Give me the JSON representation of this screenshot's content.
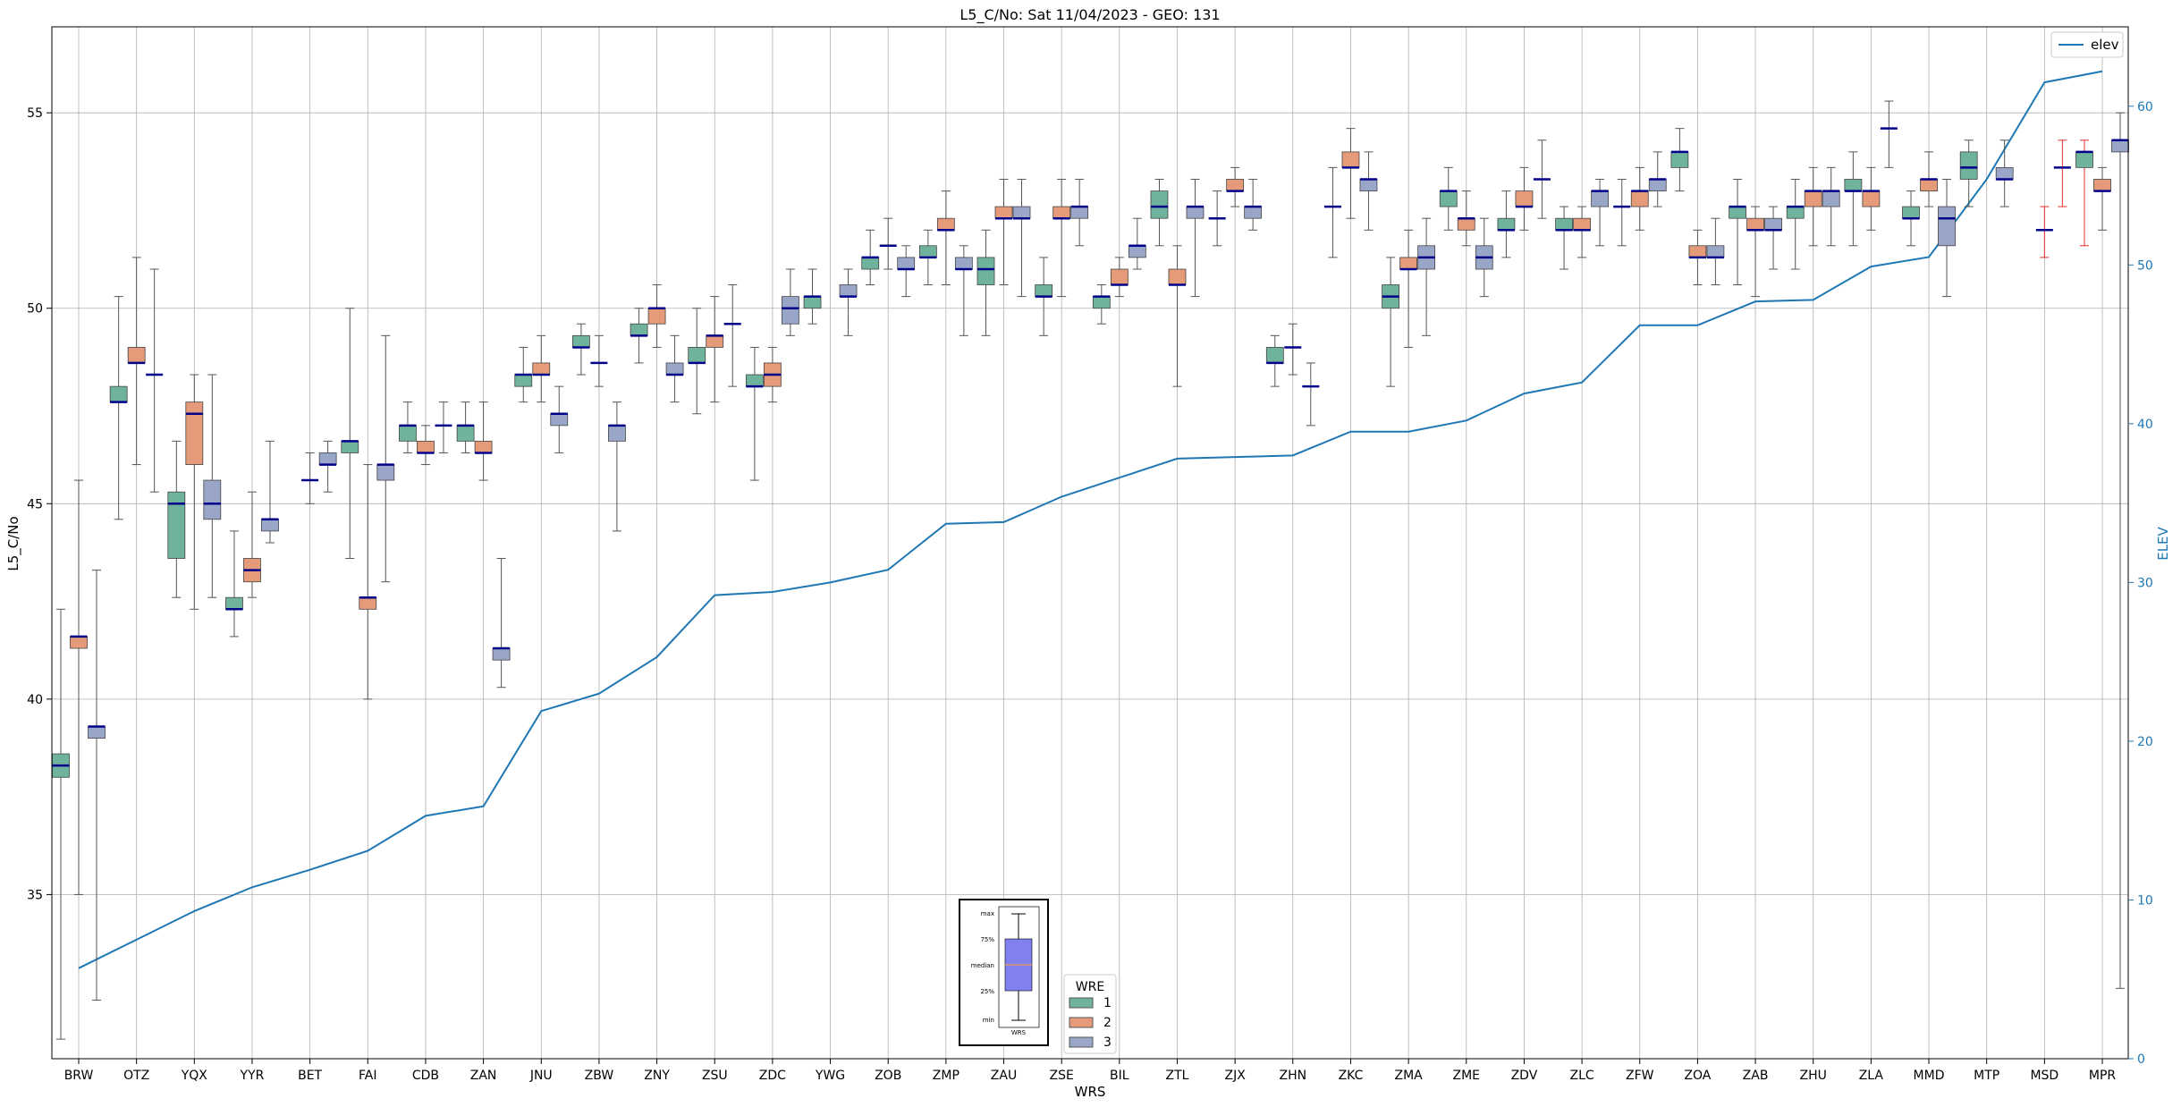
{
  "chart_data": {
    "type": "box",
    "title": "L5_C/No: Sat 11/04/2023 - GEO: 131",
    "xlabel": "WRS",
    "ylabel": "L5_C/No",
    "y2label": "ELEV",
    "ylim": [
      30.8,
      57.2
    ],
    "y2lim": [
      0,
      65
    ],
    "yticks": [
      35,
      40,
      45,
      50,
      55
    ],
    "y2ticks": [
      0,
      10,
      20,
      30,
      40,
      50,
      60
    ],
    "grid": true,
    "legend_placement": "top-right",
    "legend_line": "elev",
    "box_legend": {
      "title": "WRE",
      "entries": [
        "1",
        "2",
        "3"
      ]
    },
    "inset_labels": [
      "max",
      "75%",
      "median",
      "25%",
      "min",
      "WRS"
    ],
    "colors": {
      "1": "#6fb39c",
      "2": "#e59a79",
      "3": "#9aa6c8",
      "elev": "#1f77b4",
      "median": "#00008b",
      "whisker": "#555555",
      "outlier_whisker": "#e03030"
    },
    "categories": [
      "BRW",
      "OTZ",
      "YQX",
      "YYR",
      "BET",
      "FAI",
      "CDB",
      "ZAN",
      "JNU",
      "ZBW",
      "ZNY",
      "ZSU",
      "ZDC",
      "YWG",
      "ZOB",
      "ZMP",
      "ZAU",
      "ZSE",
      "BIL",
      "ZTL",
      "ZJX",
      "ZHN",
      "ZKC",
      "ZMA",
      "ZME",
      "ZDV",
      "ZLC",
      "ZFW",
      "ZOA",
      "ZAB",
      "ZHU",
      "ZLA",
      "MMD",
      "MTP",
      "MSD",
      "MPR"
    ],
    "elev_series": [
      5.7,
      7.5,
      9.3,
      10.8,
      11.9,
      13.1,
      15.3,
      15.9,
      21.9,
      23.0,
      25.3,
      29.2,
      29.4,
      30.0,
      30.8,
      33.7,
      33.8,
      35.4,
      36.6,
      37.8,
      37.9,
      38.0,
      39.5,
      39.5,
      40.2,
      41.9,
      42.6,
      46.2,
      46.2,
      47.7,
      47.8,
      49.9,
      50.5,
      55.4,
      61.5,
      62.2
    ],
    "boxes": [
      {
        "cat": "BRW",
        "wre": "1",
        "min": 31.3,
        "q1": 38.0,
        "med": 38.3,
        "q3": 38.6,
        "max": 42.3
      },
      {
        "cat": "BRW",
        "wre": "2",
        "min": 35.0,
        "q1": 41.3,
        "med": 41.6,
        "q3": 41.6,
        "max": 45.6
      },
      {
        "cat": "BRW",
        "wre": "3",
        "min": 32.3,
        "q1": 39.0,
        "med": 39.3,
        "q3": 39.3,
        "max": 43.3
      },
      {
        "cat": "OTZ",
        "wre": "1",
        "min": 44.6,
        "q1": 47.6,
        "med": 47.6,
        "q3": 48.0,
        "max": 50.3
      },
      {
        "cat": "OTZ",
        "wre": "2",
        "min": 46.0,
        "q1": 48.6,
        "med": 48.6,
        "q3": 49.0,
        "max": 51.3
      },
      {
        "cat": "OTZ",
        "wre": "3",
        "min": 45.3,
        "q1": 48.3,
        "med": 48.3,
        "q3": 48.3,
        "max": 51.0
      },
      {
        "cat": "YQX",
        "wre": "1",
        "min": 42.6,
        "q1": 43.6,
        "med": 45.0,
        "q3": 45.3,
        "max": 46.6
      },
      {
        "cat": "YQX",
        "wre": "2",
        "min": 42.3,
        "q1": 46.0,
        "med": 47.3,
        "q3": 47.6,
        "max": 48.3
      },
      {
        "cat": "YQX",
        "wre": "3",
        "min": 42.6,
        "q1": 44.6,
        "med": 45.0,
        "q3": 45.6,
        "max": 48.3
      },
      {
        "cat": "YYR",
        "wre": "1",
        "min": 41.6,
        "q1": 42.3,
        "med": 42.3,
        "q3": 42.6,
        "max": 44.3
      },
      {
        "cat": "YYR",
        "wre": "2",
        "min": 42.6,
        "q1": 43.0,
        "med": 43.3,
        "q3": 43.6,
        "max": 45.3
      },
      {
        "cat": "YYR",
        "wre": "3",
        "min": 44.0,
        "q1": 44.3,
        "med": 44.6,
        "q3": 44.6,
        "max": 46.6
      },
      {
        "cat": "BET",
        "wre": "2",
        "min": 45.0,
        "q1": 45.6,
        "med": 45.6,
        "q3": 45.6,
        "max": 46.3
      },
      {
        "cat": "BET",
        "wre": "3",
        "min": 45.3,
        "q1": 46.0,
        "med": 46.0,
        "q3": 46.3,
        "max": 46.6
      },
      {
        "cat": "FAI",
        "wre": "1",
        "min": 43.6,
        "q1": 46.3,
        "med": 46.6,
        "q3": 46.6,
        "max": 50.0
      },
      {
        "cat": "FAI",
        "wre": "2",
        "min": 40.0,
        "q1": 42.3,
        "med": 42.6,
        "q3": 42.6,
        "max": 46.0
      },
      {
        "cat": "FAI",
        "wre": "3",
        "min": 43.0,
        "q1": 45.6,
        "med": 46.0,
        "q3": 46.0,
        "max": 49.3
      },
      {
        "cat": "CDB",
        "wre": "1",
        "min": 46.3,
        "q1": 46.6,
        "med": 47.0,
        "q3": 47.0,
        "max": 47.6
      },
      {
        "cat": "CDB",
        "wre": "2",
        "min": 46.0,
        "q1": 46.3,
        "med": 46.3,
        "q3": 46.6,
        "max": 47.0
      },
      {
        "cat": "CDB",
        "wre": "3",
        "min": 46.3,
        "q1": 47.0,
        "med": 47.0,
        "q3": 47.0,
        "max": 47.6
      },
      {
        "cat": "ZAN",
        "wre": "1",
        "min": 46.3,
        "q1": 46.6,
        "med": 47.0,
        "q3": 47.0,
        "max": 47.6
      },
      {
        "cat": "ZAN",
        "wre": "2",
        "min": 45.6,
        "q1": 46.3,
        "med": 46.3,
        "q3": 46.6,
        "max": 47.6
      },
      {
        "cat": "ZAN",
        "wre": "3",
        "min": 40.3,
        "q1": 41.0,
        "med": 41.3,
        "q3": 41.3,
        "max": 43.6
      },
      {
        "cat": "JNU",
        "wre": "1",
        "min": 47.6,
        "q1": 48.0,
        "med": 48.3,
        "q3": 48.3,
        "max": 49.0
      },
      {
        "cat": "JNU",
        "wre": "2",
        "min": 47.6,
        "q1": 48.3,
        "med": 48.3,
        "q3": 48.6,
        "max": 49.3
      },
      {
        "cat": "JNU",
        "wre": "3",
        "min": 46.3,
        "q1": 47.0,
        "med": 47.3,
        "q3": 47.3,
        "max": 48.0
      },
      {
        "cat": "ZBW",
        "wre": "1",
        "min": 48.3,
        "q1": 49.0,
        "med": 49.0,
        "q3": 49.3,
        "max": 49.6
      },
      {
        "cat": "ZBW",
        "wre": "2",
        "min": 48.0,
        "q1": 48.6,
        "med": 48.6,
        "q3": 48.6,
        "max": 49.3
      },
      {
        "cat": "ZBW",
        "wre": "3",
        "min": 44.3,
        "q1": 46.6,
        "med": 47.0,
        "q3": 47.0,
        "max": 47.6
      },
      {
        "cat": "ZNY",
        "wre": "1",
        "min": 48.6,
        "q1": 49.3,
        "med": 49.3,
        "q3": 49.6,
        "max": 50.0
      },
      {
        "cat": "ZNY",
        "wre": "2",
        "min": 49.0,
        "q1": 49.6,
        "med": 50.0,
        "q3": 50.0,
        "max": 50.6
      },
      {
        "cat": "ZNY",
        "wre": "3",
        "min": 47.6,
        "q1": 48.3,
        "med": 48.3,
        "q3": 48.6,
        "max": 49.3
      },
      {
        "cat": "ZSU",
        "wre": "1",
        "min": 47.3,
        "q1": 48.6,
        "med": 48.6,
        "q3": 49.0,
        "max": 50.0
      },
      {
        "cat": "ZSU",
        "wre": "2",
        "min": 47.6,
        "q1": 49.0,
        "med": 49.3,
        "q3": 49.3,
        "max": 50.3
      },
      {
        "cat": "ZSU",
        "wre": "3",
        "min": 48.0,
        "q1": 49.6,
        "med": 49.6,
        "q3": 49.6,
        "max": 50.6
      },
      {
        "cat": "ZDC",
        "wre": "1",
        "min": 45.6,
        "q1": 48.0,
        "med": 48.0,
        "q3": 48.3,
        "max": 49.0
      },
      {
        "cat": "ZDC",
        "wre": "2",
        "min": 47.6,
        "q1": 48.0,
        "med": 48.3,
        "q3": 48.6,
        "max": 49.0
      },
      {
        "cat": "ZDC",
        "wre": "3",
        "min": 49.3,
        "q1": 49.6,
        "med": 50.0,
        "q3": 50.3,
        "max": 51.0
      },
      {
        "cat": "YWG",
        "wre": "1",
        "min": 49.6,
        "q1": 50.0,
        "med": 50.3,
        "q3": 50.3,
        "max": 51.0
      },
      {
        "cat": "YWG",
        "wre": "3",
        "min": 49.3,
        "q1": 50.3,
        "med": 50.3,
        "q3": 50.6,
        "max": 51.0
      },
      {
        "cat": "ZOB",
        "wre": "1",
        "min": 50.6,
        "q1": 51.0,
        "med": 51.3,
        "q3": 51.3,
        "max": 52.0
      },
      {
        "cat": "ZOB",
        "wre": "2",
        "min": 51.0,
        "q1": 51.6,
        "med": 51.6,
        "q3": 51.6,
        "max": 52.3
      },
      {
        "cat": "ZOB",
        "wre": "3",
        "min": 50.3,
        "q1": 51.0,
        "med": 51.0,
        "q3": 51.3,
        "max": 51.6
      },
      {
        "cat": "ZMP",
        "wre": "1",
        "min": 50.6,
        "q1": 51.3,
        "med": 51.3,
        "q3": 51.6,
        "max": 52.0
      },
      {
        "cat": "ZMP",
        "wre": "2",
        "min": 50.6,
        "q1": 52.0,
        "med": 52.0,
        "q3": 52.3,
        "max": 53.0
      },
      {
        "cat": "ZMP",
        "wre": "3",
        "min": 49.3,
        "q1": 51.0,
        "med": 51.0,
        "q3": 51.3,
        "max": 51.6
      },
      {
        "cat": "ZAU",
        "wre": "1",
        "min": 49.3,
        "q1": 50.6,
        "med": 51.0,
        "q3": 51.3,
        "max": 52.0
      },
      {
        "cat": "ZAU",
        "wre": "2",
        "min": 50.6,
        "q1": 52.3,
        "med": 52.3,
        "q3": 52.6,
        "max": 53.3
      },
      {
        "cat": "ZAU",
        "wre": "3",
        "min": 50.3,
        "q1": 52.3,
        "med": 52.3,
        "q3": 52.6,
        "max": 53.3
      },
      {
        "cat": "ZSE",
        "wre": "1",
        "min": 49.3,
        "q1": 50.3,
        "med": 50.3,
        "q3": 50.6,
        "max": 51.3
      },
      {
        "cat": "ZSE",
        "wre": "2",
        "min": 50.3,
        "q1": 52.3,
        "med": 52.3,
        "q3": 52.6,
        "max": 53.3
      },
      {
        "cat": "ZSE",
        "wre": "3",
        "min": 51.6,
        "q1": 52.3,
        "med": 52.6,
        "q3": 52.6,
        "max": 53.3
      },
      {
        "cat": "BIL",
        "wre": "1",
        "min": 49.6,
        "q1": 50.0,
        "med": 50.3,
        "q3": 50.3,
        "max": 50.6
      },
      {
        "cat": "BIL",
        "wre": "2",
        "min": 50.3,
        "q1": 50.6,
        "med": 50.6,
        "q3": 51.0,
        "max": 51.3
      },
      {
        "cat": "BIL",
        "wre": "3",
        "min": 51.0,
        "q1": 51.3,
        "med": 51.6,
        "q3": 51.6,
        "max": 52.3
      },
      {
        "cat": "ZTL",
        "wre": "1",
        "min": 51.6,
        "q1": 52.3,
        "med": 52.6,
        "q3": 53.0,
        "max": 53.3
      },
      {
        "cat": "ZTL",
        "wre": "2",
        "min": 48.0,
        "q1": 50.6,
        "med": 50.6,
        "q3": 51.0,
        "max": 51.6
      },
      {
        "cat": "ZTL",
        "wre": "3",
        "min": 50.3,
        "q1": 52.3,
        "med": 52.6,
        "q3": 52.6,
        "max": 53.3
      },
      {
        "cat": "ZJX",
        "wre": "1",
        "min": 51.6,
        "q1": 52.3,
        "med": 52.3,
        "q3": 52.3,
        "max": 53.0
      },
      {
        "cat": "ZJX",
        "wre": "2",
        "min": 52.6,
        "q1": 53.0,
        "med": 53.0,
        "q3": 53.3,
        "max": 53.6
      },
      {
        "cat": "ZJX",
        "wre": "3",
        "min": 52.0,
        "q1": 52.3,
        "med": 52.6,
        "q3": 52.6,
        "max": 53.3
      },
      {
        "cat": "ZHN",
        "wre": "1",
        "min": 48.0,
        "q1": 48.6,
        "med": 48.6,
        "q3": 49.0,
        "max": 49.3
      },
      {
        "cat": "ZHN",
        "wre": "2",
        "min": 48.3,
        "q1": 49.0,
        "med": 49.0,
        "q3": 49.0,
        "max": 49.6
      },
      {
        "cat": "ZHN",
        "wre": "3",
        "min": 47.0,
        "q1": 48.0,
        "med": 48.0,
        "q3": 48.0,
        "max": 48.6
      },
      {
        "cat": "ZKC",
        "wre": "1",
        "min": 51.3,
        "q1": 52.6,
        "med": 52.6,
        "q3": 52.6,
        "max": 53.6
      },
      {
        "cat": "ZKC",
        "wre": "2",
        "min": 52.3,
        "q1": 53.6,
        "med": 53.6,
        "q3": 54.0,
        "max": 54.6
      },
      {
        "cat": "ZKC",
        "wre": "3",
        "min": 52.0,
        "q1": 53.0,
        "med": 53.3,
        "q3": 53.3,
        "max": 54.0
      },
      {
        "cat": "ZMA",
        "wre": "1",
        "min": 48.0,
        "q1": 50.0,
        "med": 50.3,
        "q3": 50.6,
        "max": 51.3
      },
      {
        "cat": "ZMA",
        "wre": "2",
        "min": 49.0,
        "q1": 51.0,
        "med": 51.0,
        "q3": 51.3,
        "max": 52.0
      },
      {
        "cat": "ZMA",
        "wre": "3",
        "min": 49.3,
        "q1": 51.0,
        "med": 51.3,
        "q3": 51.6,
        "max": 52.3
      },
      {
        "cat": "ZME",
        "wre": "1",
        "min": 52.0,
        "q1": 52.6,
        "med": 53.0,
        "q3": 53.0,
        "max": 53.6
      },
      {
        "cat": "ZME",
        "wre": "2",
        "min": 51.6,
        "q1": 52.0,
        "med": 52.3,
        "q3": 52.3,
        "max": 53.0
      },
      {
        "cat": "ZME",
        "wre": "3",
        "min": 50.3,
        "q1": 51.0,
        "med": 51.3,
        "q3": 51.6,
        "max": 52.3
      },
      {
        "cat": "ZDV",
        "wre": "1",
        "min": 51.3,
        "q1": 52.0,
        "med": 52.0,
        "q3": 52.3,
        "max": 53.0
      },
      {
        "cat": "ZDV",
        "wre": "2",
        "min": 52.0,
        "q1": 52.6,
        "med": 52.6,
        "q3": 53.0,
        "max": 53.6
      },
      {
        "cat": "ZDV",
        "wre": "3",
        "min": 52.3,
        "q1": 53.3,
        "med": 53.3,
        "q3": 53.3,
        "max": 54.3
      },
      {
        "cat": "ZLC",
        "wre": "1",
        "min": 51.0,
        "q1": 52.0,
        "med": 52.0,
        "q3": 52.3,
        "max": 52.6
      },
      {
        "cat": "ZLC",
        "wre": "2",
        "min": 51.3,
        "q1": 52.0,
        "med": 52.0,
        "q3": 52.3,
        "max": 52.6
      },
      {
        "cat": "ZLC",
        "wre": "3",
        "min": 51.6,
        "q1": 52.6,
        "med": 53.0,
        "q3": 53.0,
        "max": 53.3
      },
      {
        "cat": "ZFW",
        "wre": "1",
        "min": 51.6,
        "q1": 52.6,
        "med": 52.6,
        "q3": 52.6,
        "max": 53.3
      },
      {
        "cat": "ZFW",
        "wre": "2",
        "min": 52.0,
        "q1": 52.6,
        "med": 53.0,
        "q3": 53.0,
        "max": 53.6
      },
      {
        "cat": "ZFW",
        "wre": "3",
        "min": 52.6,
        "q1": 53.0,
        "med": 53.3,
        "q3": 53.3,
        "max": 54.0
      },
      {
        "cat": "ZOA",
        "wre": "1",
        "min": 53.0,
        "q1": 53.6,
        "med": 54.0,
        "q3": 54.0,
        "max": 54.6
      },
      {
        "cat": "ZOA",
        "wre": "2",
        "min": 50.6,
        "q1": 51.3,
        "med": 51.3,
        "q3": 51.6,
        "max": 52.0
      },
      {
        "cat": "ZOA",
        "wre": "3",
        "min": 50.6,
        "q1": 51.3,
        "med": 51.3,
        "q3": 51.6,
        "max": 52.3
      },
      {
        "cat": "ZAB",
        "wre": "1",
        "min": 50.6,
        "q1": 52.3,
        "med": 52.6,
        "q3": 52.6,
        "max": 53.3
      },
      {
        "cat": "ZAB",
        "wre": "2",
        "min": 50.3,
        "q1": 52.0,
        "med": 52.0,
        "q3": 52.3,
        "max": 52.6
      },
      {
        "cat": "ZAB",
        "wre": "3",
        "min": 51.0,
        "q1": 52.0,
        "med": 52.0,
        "q3": 52.3,
        "max": 52.6
      },
      {
        "cat": "ZHU",
        "wre": "1",
        "min": 51.0,
        "q1": 52.3,
        "med": 52.6,
        "q3": 52.6,
        "max": 53.3
      },
      {
        "cat": "ZHU",
        "wre": "2",
        "min": 51.6,
        "q1": 52.6,
        "med": 53.0,
        "q3": 53.0,
        "max": 53.6
      },
      {
        "cat": "ZHU",
        "wre": "3",
        "min": 51.6,
        "q1": 52.6,
        "med": 53.0,
        "q3": 53.0,
        "max": 53.6
      },
      {
        "cat": "ZLA",
        "wre": "1",
        "min": 51.6,
        "q1": 53.0,
        "med": 53.0,
        "q3": 53.3,
        "max": 54.0
      },
      {
        "cat": "ZLA",
        "wre": "2",
        "min": 52.0,
        "q1": 52.6,
        "med": 53.0,
        "q3": 53.0,
        "max": 53.6
      },
      {
        "cat": "ZLA",
        "wre": "3",
        "min": 53.6,
        "q1": 54.6,
        "med": 54.6,
        "q3": 54.6,
        "max": 55.3
      },
      {
        "cat": "MMD",
        "wre": "1",
        "min": 51.6,
        "q1": 52.3,
        "med": 52.3,
        "q3": 52.6,
        "max": 53.0
      },
      {
        "cat": "MMD",
        "wre": "2",
        "min": 52.6,
        "q1": 53.0,
        "med": 53.3,
        "q3": 53.3,
        "max": 54.0
      },
      {
        "cat": "MMD",
        "wre": "3",
        "min": 50.3,
        "q1": 51.6,
        "med": 52.3,
        "q3": 52.6,
        "max": 53.3
      },
      {
        "cat": "MTP",
        "wre": "1",
        "min": 52.6,
        "q1": 53.3,
        "med": 53.6,
        "q3": 54.0,
        "max": 54.3
      },
      {
        "cat": "MTP",
        "wre": "3",
        "min": 52.6,
        "q1": 53.3,
        "med": 53.3,
        "q3": 53.6,
        "max": 54.3
      },
      {
        "cat": "MSD",
        "wre": "2",
        "min": 51.3,
        "q1": 52.0,
        "med": 52.0,
        "q3": 52.0,
        "max": 52.6,
        "outlier": true
      },
      {
        "cat": "MSD",
        "wre": "3",
        "min": 52.6,
        "q1": 53.6,
        "med": 53.6,
        "q3": 53.6,
        "max": 54.3,
        "outlier": true
      },
      {
        "cat": "MPR",
        "wre": "1",
        "min": 51.6,
        "q1": 53.6,
        "med": 54.0,
        "q3": 54.0,
        "max": 54.3,
        "outlier": true
      },
      {
        "cat": "MPR",
        "wre": "2",
        "min": 52.0,
        "q1": 53.0,
        "med": 53.0,
        "q3": 53.3,
        "max": 53.6
      },
      {
        "cat": "MPR",
        "wre": "3",
        "min": 32.6,
        "q1": 54.0,
        "med": 54.3,
        "q3": 54.3,
        "max": 55.0
      }
    ]
  }
}
